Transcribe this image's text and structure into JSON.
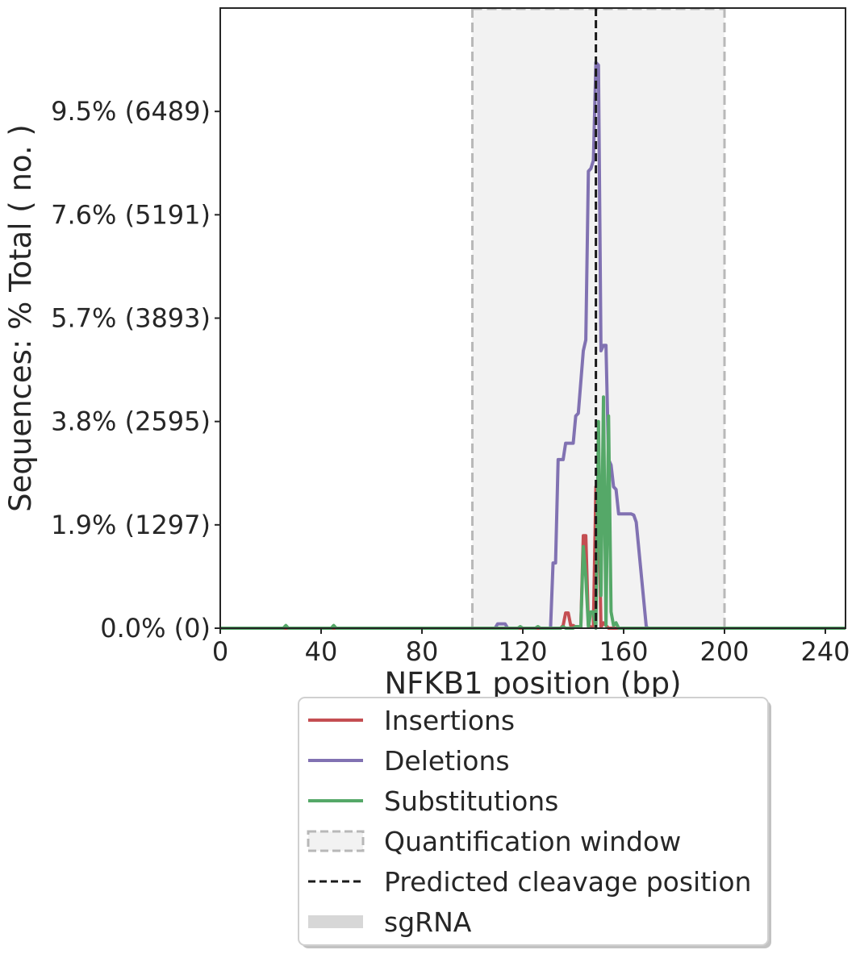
{
  "chart_data": {
    "type": "line",
    "title": "",
    "xlabel": "NFKB1 position (bp)",
    "ylabel": "Sequences: % Total ( no. )",
    "xlim": [
      0,
      248
    ],
    "ylim": [
      0,
      11.4
    ],
    "xticks": [
      0,
      40,
      80,
      120,
      160,
      200,
      240
    ],
    "yticks": [
      {
        "value": 0.0,
        "label": "0.0% (0)"
      },
      {
        "value": 1.9,
        "label": "1.9% (1297)"
      },
      {
        "value": 3.8,
        "label": "3.8% (2595)"
      },
      {
        "value": 5.7,
        "label": "5.7% (3893)"
      },
      {
        "value": 7.6,
        "label": "7.6% (5191)"
      },
      {
        "value": 9.5,
        "label": "9.5% (6489)"
      }
    ],
    "grid": false,
    "quantification_window": [
      100,
      200
    ],
    "predicted_cleavage_position": 149,
    "colors": {
      "insertions": "#c44e52",
      "deletions": "#8172b2",
      "substitutions": "#55a868",
      "window_fill": "#f2f2f2",
      "window_edge": "#b8b8b8",
      "cleavage": "#1a1a1a",
      "sgrna": "#d7d7d7"
    },
    "series": [
      {
        "name": "Insertions",
        "color": "#c44e52",
        "points": [
          [
            0,
            0
          ],
          [
            135,
            0
          ],
          [
            136,
            0.05
          ],
          [
            137,
            0.28
          ],
          [
            138,
            0.28
          ],
          [
            139,
            0.05
          ],
          [
            140,
            0.05
          ],
          [
            141,
            0.02
          ],
          [
            143,
            0.02
          ],
          [
            144,
            1.7
          ],
          [
            145,
            1.7
          ],
          [
            146,
            0.06
          ],
          [
            147,
            0.02
          ],
          [
            148,
            0.02
          ],
          [
            149,
            2.6
          ],
          [
            150,
            2.6
          ],
          [
            151,
            0.02
          ],
          [
            152,
            0.1
          ],
          [
            153,
            0.05
          ],
          [
            154,
            0
          ],
          [
            248,
            0
          ]
        ]
      },
      {
        "name": "Deletions",
        "color": "#8172b2",
        "points": [
          [
            0,
            0
          ],
          [
            109,
            0
          ],
          [
            110,
            0.08
          ],
          [
            113,
            0.08
          ],
          [
            114,
            0
          ],
          [
            131,
            0
          ],
          [
            132,
            1.2
          ],
          [
            133,
            1.2
          ],
          [
            134,
            3.1
          ],
          [
            136,
            3.1
          ],
          [
            137,
            3.4
          ],
          [
            140,
            3.4
          ],
          [
            141,
            3.9
          ],
          [
            142,
            3.95
          ],
          [
            144,
            5.1
          ],
          [
            145,
            5.3
          ],
          [
            146,
            8.4
          ],
          [
            147,
            8.45
          ],
          [
            148,
            8.6
          ],
          [
            149,
            10.4
          ],
          [
            150,
            10.35
          ],
          [
            151,
            5.1
          ],
          [
            152,
            5.2
          ],
          [
            153,
            5.2
          ],
          [
            154,
            3.1
          ],
          [
            155,
            3.0
          ],
          [
            156,
            2.6
          ],
          [
            157,
            2.55
          ],
          [
            158,
            2.1
          ],
          [
            163,
            2.1
          ],
          [
            164,
            2.08
          ],
          [
            165,
            1.95
          ],
          [
            169,
            0.02
          ],
          [
            170,
            0
          ],
          [
            248,
            0
          ]
        ]
      },
      {
        "name": "Substitutions",
        "color": "#55a868",
        "points": [
          [
            0,
            0
          ],
          [
            25,
            0
          ],
          [
            26,
            0.05
          ],
          [
            27,
            0
          ],
          [
            44,
            0
          ],
          [
            45,
            0.05
          ],
          [
            46,
            0
          ],
          [
            118,
            0
          ],
          [
            119,
            0.03
          ],
          [
            120,
            0
          ],
          [
            125,
            0
          ],
          [
            126,
            0.03
          ],
          [
            127,
            0
          ],
          [
            135,
            0
          ],
          [
            136,
            0.03
          ],
          [
            137,
            0
          ],
          [
            140,
            0
          ],
          [
            141,
            0.03
          ],
          [
            142,
            0.03
          ],
          [
            143,
            0.02
          ],
          [
            144,
            1.5
          ],
          [
            145,
            0.95
          ],
          [
            146,
            0.02
          ],
          [
            147,
            0.3
          ],
          [
            148,
            0.3
          ],
          [
            149,
            0
          ],
          [
            150,
            3.8
          ],
          [
            151,
            0.6
          ],
          [
            152,
            4.25
          ],
          [
            153,
            0.05
          ],
          [
            154,
            3.9
          ],
          [
            155,
            0.3
          ],
          [
            156,
            0.05
          ],
          [
            157,
            0.1
          ],
          [
            158,
            0
          ],
          [
            248,
            0
          ]
        ]
      }
    ],
    "legend": {
      "placement": "below",
      "entries": [
        {
          "label": "Insertions",
          "kind": "line",
          "color": "#c44e52"
        },
        {
          "label": "Deletions",
          "kind": "line",
          "color": "#8172b2"
        },
        {
          "label": "Substitutions",
          "kind": "line",
          "color": "#55a868"
        },
        {
          "label": "Quantification window",
          "kind": "window"
        },
        {
          "label": "Predicted cleavage position",
          "kind": "dashed"
        },
        {
          "label": "sgRNA",
          "kind": "sgrna"
        }
      ]
    }
  }
}
